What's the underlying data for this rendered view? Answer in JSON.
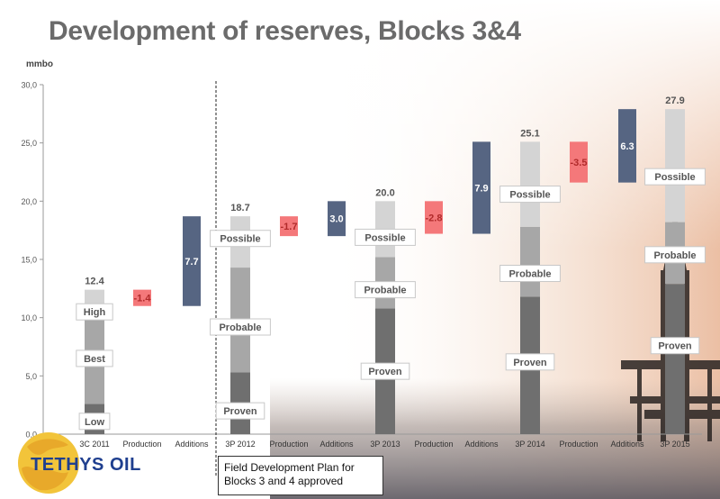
{
  "title": "Development of reserves, Blocks 3&4",
  "logo_text": "TETHYS OIL",
  "note": "Field Development Plan for\nBlocks 3 and 4 approved",
  "colors": {
    "additions": "#566582",
    "production": "#f4787a",
    "light": "#d4d4d4",
    "mid": "#a7a7a7",
    "dark": "#6f6f6f",
    "axis": "#999999",
    "title": "#6b6b6b"
  },
  "chart_data": {
    "type": "bar",
    "subtype": "waterfall",
    "ylabel": "mmbo",
    "ylim": [
      0,
      30
    ],
    "yticks": [
      "0,0",
      "5,0",
      "10,0",
      "15,0",
      "20,0",
      "25,0",
      "30,0"
    ],
    "categories": [
      "3C 2011",
      "Production",
      "Additions",
      "3P 2012",
      "Production",
      "Additions",
      "3P 2013",
      "Production",
      "Additions",
      "3P 2014",
      "Production",
      "Additions",
      "3P 2015"
    ],
    "bars": [
      {
        "category": "3C 2011",
        "kind": "stack",
        "total_label": "12.4",
        "total": 12.4,
        "segments": [
          {
            "name": "Low",
            "from": 0,
            "to": 2.6,
            "shade": "dark"
          },
          {
            "name": "Best",
            "from": 2.6,
            "to": 10.4,
            "shade": "mid"
          },
          {
            "name": "High",
            "from": 10.4,
            "to": 12.4,
            "shade": "light"
          }
        ],
        "labels": [
          {
            "text": "Low",
            "at": 1.1
          },
          {
            "text": "Best",
            "at": 6.5
          },
          {
            "text": "High",
            "at": 10.5
          }
        ]
      },
      {
        "category": "Production",
        "kind": "delta",
        "label": "-1.4",
        "from": 11.0,
        "to": 12.4,
        "shade": "production"
      },
      {
        "category": "Additions",
        "kind": "delta",
        "label": "7.7",
        "from": 11.0,
        "to": 18.7,
        "shade": "additions"
      },
      {
        "category": "3P 2012",
        "kind": "stack",
        "total_label": "18.7",
        "total": 18.7,
        "segments": [
          {
            "name": "Proven",
            "from": 0,
            "to": 5.3,
            "shade": "dark"
          },
          {
            "name": "Probable",
            "from": 5.3,
            "to": 14.3,
            "shade": "mid"
          },
          {
            "name": "Possible",
            "from": 14.3,
            "to": 18.7,
            "shade": "light"
          }
        ],
        "labels": [
          {
            "text": "Proven",
            "at": 2.0
          },
          {
            "text": "Probable",
            "at": 9.2
          },
          {
            "text": "Possible",
            "at": 16.8
          }
        ]
      },
      {
        "category": "Production",
        "kind": "delta",
        "label": "-1.7",
        "from": 17.0,
        "to": 18.7,
        "shade": "production"
      },
      {
        "category": "Additions",
        "kind": "delta",
        "label": "3.0",
        "from": 17.0,
        "to": 20.0,
        "shade": "additions"
      },
      {
        "category": "3P 2013",
        "kind": "stack",
        "total_label": "20.0",
        "total": 20.0,
        "segments": [
          {
            "name": "Proven",
            "from": 0,
            "to": 10.8,
            "shade": "dark"
          },
          {
            "name": "Probable",
            "from": 10.8,
            "to": 15.2,
            "shade": "mid"
          },
          {
            "name": "Possible",
            "from": 15.2,
            "to": 20.0,
            "shade": "light"
          }
        ],
        "labels": [
          {
            "text": "Proven",
            "at": 5.4
          },
          {
            "text": "Probable",
            "at": 12.4
          },
          {
            "text": "Possible",
            "at": 16.9
          }
        ]
      },
      {
        "category": "Production",
        "kind": "delta",
        "label": "-2.8",
        "from": 17.2,
        "to": 20.0,
        "shade": "production"
      },
      {
        "category": "Additions",
        "kind": "delta",
        "label": "7.9",
        "from": 17.2,
        "to": 25.1,
        "shade": "additions"
      },
      {
        "category": "3P 2014",
        "kind": "stack",
        "total_label": "25.1",
        "total": 25.1,
        "segments": [
          {
            "name": "Proven",
            "from": 0,
            "to": 11.8,
            "shade": "dark"
          },
          {
            "name": "Probable",
            "from": 11.8,
            "to": 17.8,
            "shade": "mid"
          },
          {
            "name": "Possible",
            "from": 17.8,
            "to": 25.1,
            "shade": "light"
          }
        ],
        "labels": [
          {
            "text": "Proven",
            "at": 6.2
          },
          {
            "text": "Probable",
            "at": 13.8
          },
          {
            "text": "Possible",
            "at": 20.6
          }
        ]
      },
      {
        "category": "Production",
        "kind": "delta",
        "label": "-3.5",
        "from": 21.6,
        "to": 25.1,
        "shade": "production"
      },
      {
        "category": "Additions",
        "kind": "delta",
        "label": "6.3",
        "from": 21.6,
        "to": 27.9,
        "shade": "additions"
      },
      {
        "category": "3P 2015",
        "kind": "stack",
        "total_label": "27.9",
        "total": 27.9,
        "segments": [
          {
            "name": "Proven",
            "from": 0,
            "to": 12.9,
            "shade": "dark"
          },
          {
            "name": "Probable",
            "from": 12.9,
            "to": 18.2,
            "shade": "mid"
          },
          {
            "name": "Possible",
            "from": 18.2,
            "to": 27.9,
            "shade": "light"
          }
        ],
        "labels": [
          {
            "text": "Proven",
            "at": 7.6
          },
          {
            "text": "Probable",
            "at": 15.4
          },
          {
            "text": "Possible",
            "at": 22.1
          }
        ]
      }
    ],
    "divider_after_category_index": 2,
    "grid": false,
    "legend": "none"
  }
}
